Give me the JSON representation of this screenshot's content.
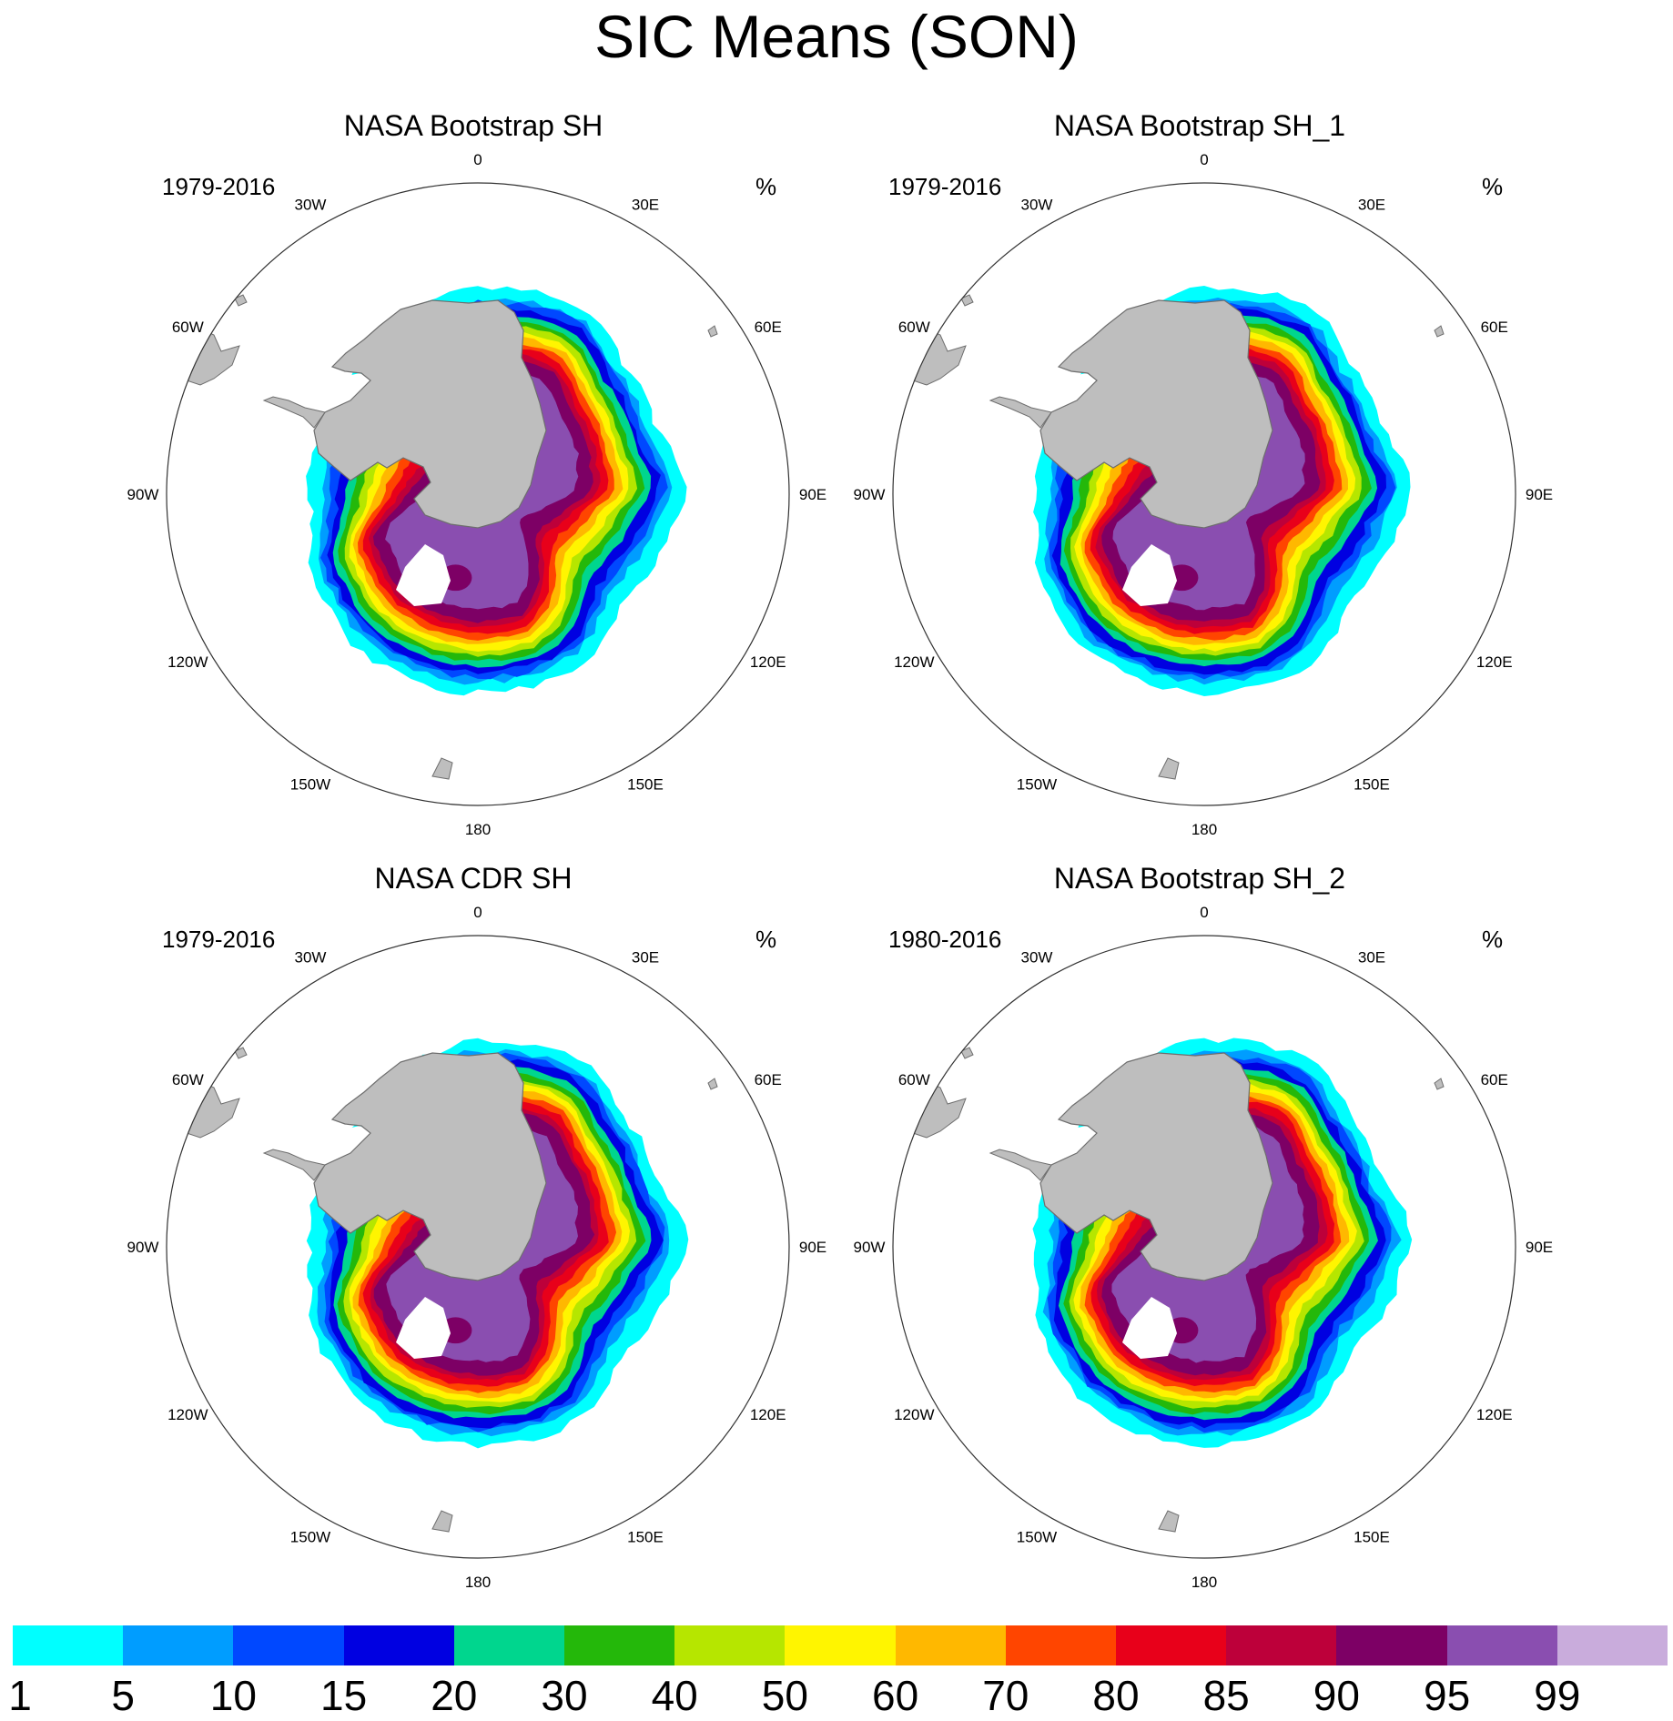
{
  "figure_title": "SIC Means (SON)",
  "units": "%",
  "panels": [
    {
      "title": "NASA Bootstrap SH",
      "period": "1979-2016",
      "units": "%"
    },
    {
      "title": "NASA Bootstrap SH_1",
      "period": "1979-2016",
      "units": "%"
    },
    {
      "title": "NASA CDR SH",
      "period": "1979-2016",
      "units": "%"
    },
    {
      "title": "NASA Bootstrap SH_2",
      "period": "1980-2016",
      "units": "%"
    }
  ],
  "longitude_labels": [
    "0",
    "30E",
    "60E",
    "90E",
    "120E",
    "150E",
    "180",
    "150W",
    "120W",
    "90W",
    "60W",
    "30W"
  ],
  "colorbar": {
    "levels": [
      "1",
      "5",
      "10",
      "15",
      "20",
      "30",
      "40",
      "50",
      "60",
      "70",
      "80",
      "85",
      "90",
      "95",
      "99"
    ],
    "colors": [
      "#00ffff",
      "#009dff",
      "#0048ff",
      "#0000e1",
      "#00d68e",
      "#24b80a",
      "#b6e600",
      "#fff500",
      "#ffb800",
      "#ff4500",
      "#e8001a",
      "#bd003a",
      "#7d0065",
      "#8a4eb0",
      "#c9acdc"
    ]
  },
  "map_colors": {
    "land": "#bebebe",
    "coast": "#6e6e6e",
    "grid_circle": "#333333",
    "ocean": "#ffffff",
    "shelf": "#ffffff"
  },
  "chart_data": {
    "type": "polar-stereographic-filled-contour",
    "variable": "Sea ice concentration",
    "season": "SON",
    "hemisphere": "SH",
    "units": "%",
    "contour_levels": [
      1,
      5,
      10,
      15,
      20,
      30,
      40,
      50,
      60,
      70,
      80,
      85,
      90,
      95,
      99
    ]
  }
}
